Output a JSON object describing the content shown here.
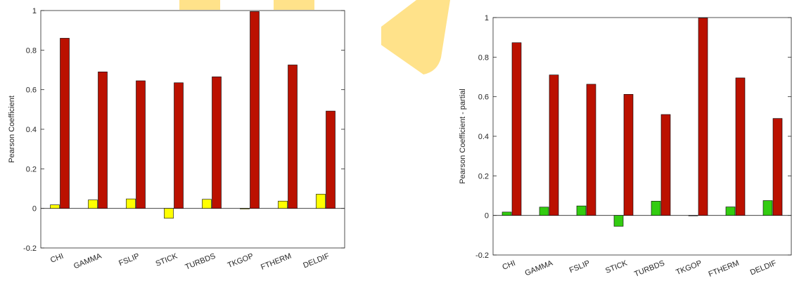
{
  "chart_data": [
    {
      "type": "bar",
      "ylabel": "Pearson Coefficient",
      "ylim": [
        -0.2,
        1
      ],
      "yticks": [
        -0.2,
        0,
        0.2,
        0.4,
        0.6,
        0.8,
        1
      ],
      "categories": [
        "CHI",
        "GAMMA",
        "FSLIP",
        "STICK",
        "TURBDS",
        "TKGOP",
        "FTHERM",
        "DELDIF"
      ],
      "grid": false,
      "series": [
        {
          "color": "#ffff00",
          "values": [
            0.018,
            0.043,
            0.048,
            -0.05,
            0.046,
            -0.003,
            0.037,
            0.072
          ]
        },
        {
          "color": "#bb1100",
          "values": [
            0.86,
            0.69,
            0.645,
            0.635,
            0.665,
            0.995,
            0.725,
            0.492
          ]
        }
      ]
    },
    {
      "type": "bar",
      "ylabel": "Pearson Coefficient - partial",
      "ylim": [
        -0.2,
        1
      ],
      "yticks": [
        -0.2,
        0,
        0.2,
        0.4,
        0.6,
        0.8,
        1
      ],
      "categories": [
        "CHI",
        "GAMMA",
        "FSLIP",
        "STICK",
        "TURBDS",
        "TKGOP",
        "FTHERM",
        "DELDIF"
      ],
      "grid": false,
      "series": [
        {
          "color": "#33cc11",
          "values": [
            0.017,
            0.042,
            0.048,
            -0.055,
            0.072,
            -0.002,
            0.043,
            0.075
          ]
        },
        {
          "color": "#bb1100",
          "values": [
            0.873,
            0.71,
            0.663,
            0.612,
            0.51,
            0.998,
            0.695,
            0.49
          ]
        }
      ]
    }
  ],
  "decor": {
    "watermark_color": "#ffe28a"
  }
}
